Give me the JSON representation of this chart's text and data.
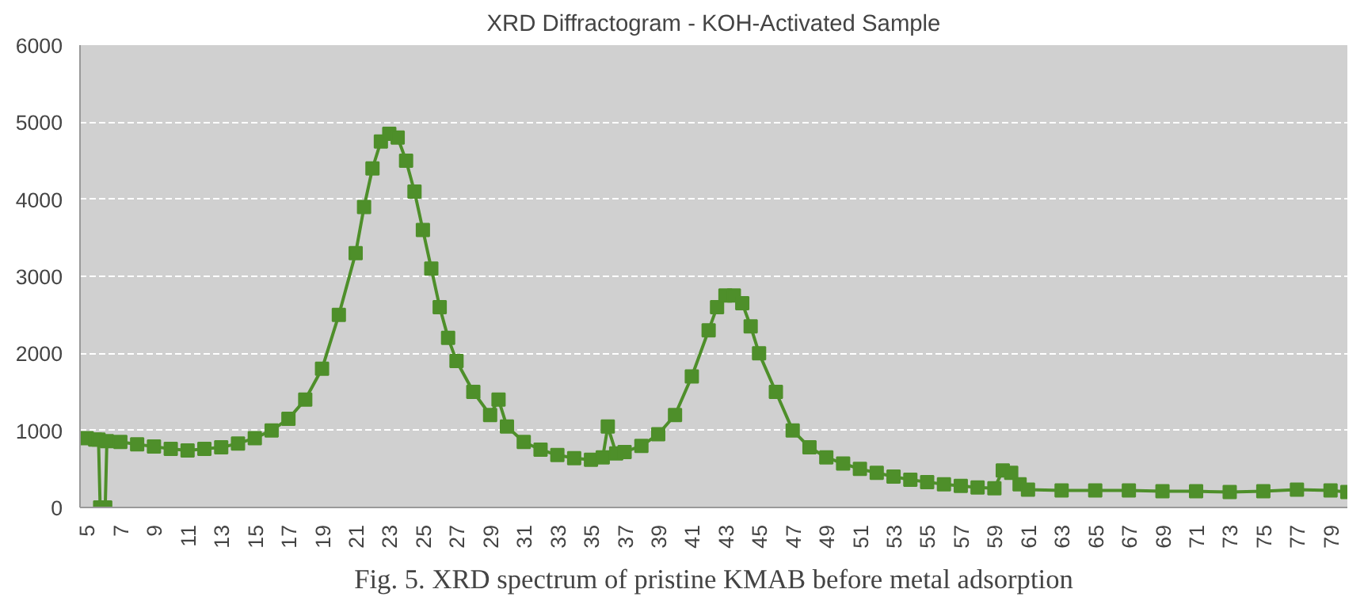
{
  "chart_data": {
    "type": "line",
    "title": "XRD Diffractogram - KOH-Activated Sample",
    "annotations": [
      "Fig. 5. XRD spectrum of pristine KMAB before metal adsorption"
    ],
    "x": [
      5,
      5.5,
      5.7,
      5.8,
      6.1,
      6.2,
      7,
      8,
      9,
      10,
      11,
      12,
      13,
      14,
      15,
      16,
      17,
      18,
      19,
      20,
      21,
      21.5,
      22,
      22.5,
      23,
      23.5,
      24,
      24.5,
      25,
      25.5,
      26,
      26.5,
      27,
      28,
      29,
      29.5,
      30,
      31,
      32,
      33,
      34,
      35,
      35.7,
      36,
      36.5,
      37,
      38,
      39,
      40,
      41,
      42,
      42.5,
      43,
      43.5,
      44,
      44.5,
      45,
      46,
      47,
      48,
      49,
      50,
      51,
      52,
      53,
      54,
      55,
      56,
      57,
      58,
      59,
      59.5,
      60,
      60.5,
      61,
      63,
      65,
      67,
      69,
      71,
      73,
      75,
      77,
      79,
      80
    ],
    "series": [
      {
        "color": "#4e8f2a",
        "values": [
          900,
          880,
          880,
          0,
          0,
          860,
          850,
          820,
          790,
          760,
          740,
          760,
          780,
          830,
          900,
          1000,
          1150,
          1400,
          1800,
          2500,
          3300,
          3900,
          4400,
          4750,
          4850,
          4800,
          4500,
          4100,
          3600,
          3100,
          2600,
          2200,
          1900,
          1500,
          1200,
          1400,
          1050,
          850,
          750,
          680,
          640,
          620,
          650,
          1050,
          700,
          720,
          800,
          950,
          1200,
          1700,
          2300,
          2600,
          2750,
          2750,
          2650,
          2350,
          2000,
          1500,
          1000,
          780,
          650,
          570,
          500,
          450,
          400,
          360,
          330,
          300,
          280,
          260,
          250,
          480,
          450,
          300,
          230,
          220,
          220,
          220,
          210,
          210,
          200,
          210,
          230,
          220,
          200
        ]
      }
    ],
    "xlim": [
      4.6,
      80
    ],
    "xticks": [
      5,
      7,
      9,
      11,
      13,
      15,
      17,
      19,
      21,
      23,
      25,
      27,
      29,
      31,
      33,
      35,
      37,
      39,
      41,
      43,
      45,
      47,
      49,
      51,
      53,
      55,
      57,
      59,
      61,
      63,
      65,
      67,
      69,
      71,
      73,
      75,
      77,
      79
    ],
    "ylim": [
      0,
      6000
    ],
    "yticks": [
      0,
      1000,
      2000,
      3000,
      4000,
      5000,
      6000
    ],
    "grid": "y",
    "marker": "square",
    "line_style": "solid"
  }
}
